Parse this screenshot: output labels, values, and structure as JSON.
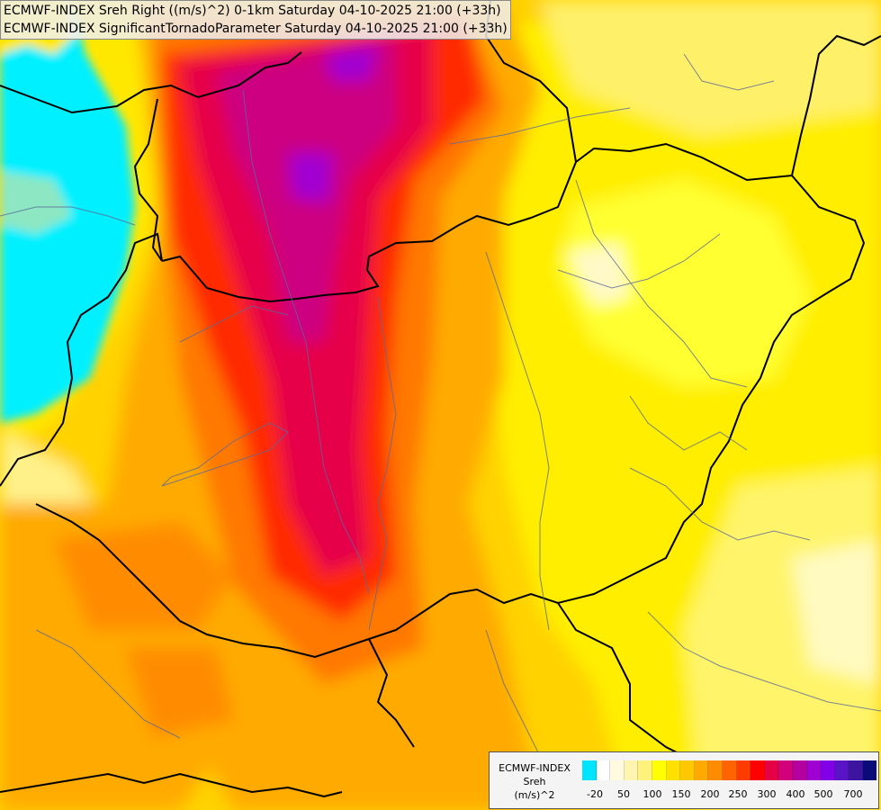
{
  "header": {
    "line1": "ECMWF-INDEX Sreh Right ((m/s)^2) 0-1km Saturday 04-10-2025 21:00 (+33h)",
    "line2": "ECMWF-INDEX SignificantTornadoParameter Saturday 04-10-2025 21:00 (+33h)"
  },
  "legend": {
    "title_line1": "ECMWF-INDEX",
    "title_line2": "Sreh",
    "title_line3": "(m/s)^2",
    "colors": [
      "#00e5ff",
      "#ffffff",
      "#fffae0",
      "#fff4b0",
      "#fff27a",
      "#ffff00",
      "#ffe100",
      "#ffc800",
      "#ffaa00",
      "#ff8c00",
      "#ff6400",
      "#ff3c00",
      "#ff0000",
      "#e60046",
      "#d2007a",
      "#b4009f",
      "#a000d2",
      "#8200e6",
      "#5a14c8",
      "#3c14a0",
      "#0a0a78"
    ],
    "ticks": [
      "-20",
      "50",
      "100",
      "150",
      "200",
      "250",
      "300",
      "400",
      "500",
      "700"
    ]
  },
  "map_colors": {
    "cyan": "#00f0ff",
    "light_yellow": "#fff0a0",
    "yellow": "#ffff00",
    "gold": "#ffd200",
    "orange": "#ffaa00",
    "dark_orange": "#ff7800",
    "red_orange": "#ff5000",
    "red": "#ff1400",
    "crimson": "#e6004a",
    "magenta": "#cc0080",
    "purple": "#a000d2"
  }
}
